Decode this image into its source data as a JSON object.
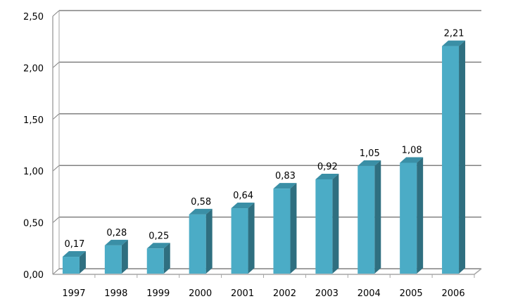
{
  "chart_data": {
    "type": "bar",
    "categories": [
      "1997",
      "1998",
      "1999",
      "2000",
      "2001",
      "2002",
      "2003",
      "2004",
      "2005",
      "2006"
    ],
    "values": [
      0.17,
      0.28,
      0.25,
      0.58,
      0.64,
      0.83,
      0.92,
      1.05,
      1.08,
      2.21
    ],
    "data_labels": [
      "0,17",
      "0,28",
      "0,25",
      "0,58",
      "0,64",
      "0,83",
      "0,92",
      "1,05",
      "1,08",
      "2,21"
    ],
    "ylim": [
      0,
      2.5
    ],
    "yticks": [
      0,
      0.5,
      1,
      1.5,
      2,
      2.5
    ],
    "ytick_labels": [
      "0,00",
      "0,50",
      "1,00",
      "1,50",
      "2,00",
      "2,50"
    ],
    "grid": true,
    "legend": "none",
    "style": "3d-bar",
    "colors": {
      "bar_front": "#4bacc6",
      "bar_side": "#2f6f80",
      "bar_top": "#3a8fa6",
      "grid": "#808080",
      "axis_wall": "#a6a6a6"
    }
  }
}
